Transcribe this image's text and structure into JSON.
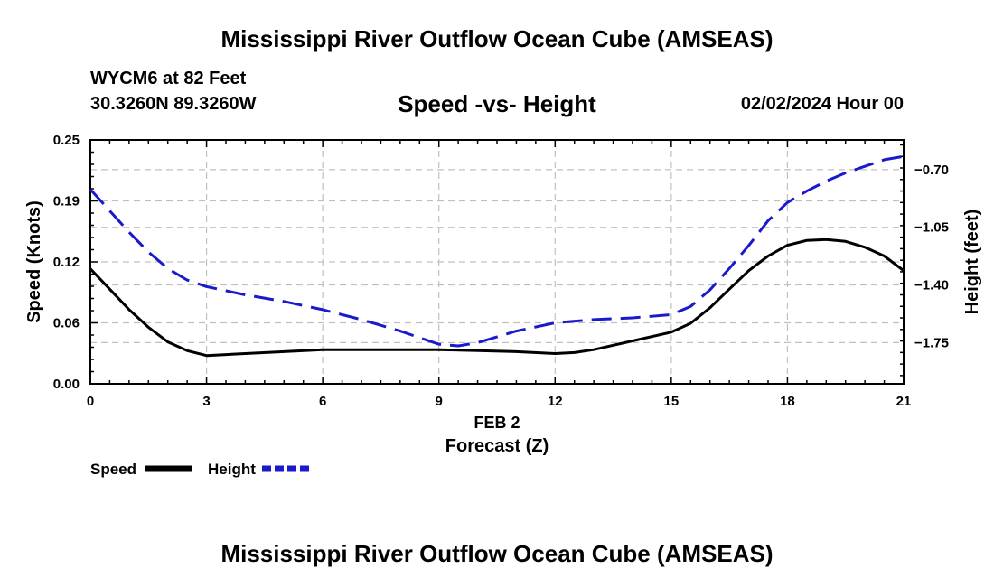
{
  "header": {
    "main_title": "Mississippi River Outflow Ocean Cube (AMSEAS)",
    "station": "WYCM6 at 82 Feet",
    "coords": "30.3260N  89.3260W",
    "subtitle": "Speed -vs- Height",
    "datetime": "02/02/2024 Hour 00"
  },
  "footer": {
    "bottom_title": "Mississippi River Outflow Ocean Cube (AMSEAS)"
  },
  "colors": {
    "speed": "#000000",
    "height": "#1a1acc",
    "grid": "#c0c0c0"
  },
  "chart_data": {
    "type": "line",
    "title": "Speed -vs- Height",
    "xlabel": "Forecast (Z)",
    "x_date_label": "FEB 2",
    "ylabel_left": "Speed (Knots)",
    "ylabel_right": "Height (feet)",
    "xlim": [
      0,
      21
    ],
    "ylim_left": [
      0,
      0.25
    ],
    "ylim_right": [
      -2.0,
      -0.52
    ],
    "x_ticks": [
      0,
      3,
      6,
      9,
      12,
      15,
      18,
      21
    ],
    "x_tick_labels": [
      "0",
      "3",
      "6",
      "9",
      "12",
      "15",
      "18",
      "21"
    ],
    "y_left_ticks": [
      0.0,
      0.0625,
      0.125,
      0.1875,
      0.25
    ],
    "y_left_tick_labels": [
      "0.00",
      "0.06",
      "0.12",
      "0.19",
      "0.25"
    ],
    "y_right_ticks": [
      -1.75,
      -1.4,
      -1.05,
      -0.7
    ],
    "y_right_tick_labels": [
      "−1.75",
      "−1.40",
      "−1.05",
      "−0.70"
    ],
    "grid": true,
    "legend": "bottom-left",
    "legend_entries": [
      "Speed",
      "Height"
    ],
    "series": [
      {
        "name": "Speed",
        "axis": "left",
        "style": "solid",
        "x": [
          0,
          0.5,
          1,
          1.5,
          2,
          2.5,
          3,
          4,
          5,
          6,
          7,
          8,
          9,
          10,
          11,
          12,
          12.5,
          13,
          14,
          15,
          15.5,
          16,
          16.5,
          17,
          17.5,
          18,
          18.5,
          19,
          19.5,
          20,
          20.5,
          21
        ],
        "values": [
          0.118,
          0.097,
          0.076,
          0.058,
          0.043,
          0.034,
          0.029,
          0.031,
          0.033,
          0.035,
          0.035,
          0.035,
          0.035,
          0.034,
          0.033,
          0.031,
          0.032,
          0.035,
          0.044,
          0.053,
          0.062,
          0.078,
          0.097,
          0.116,
          0.131,
          0.142,
          0.147,
          0.148,
          0.146,
          0.14,
          0.131,
          0.116
        ]
      },
      {
        "name": "Height",
        "axis": "right",
        "style": "dashed",
        "x": [
          0,
          0.5,
          1,
          1.5,
          2,
          2.5,
          3,
          4,
          5,
          6,
          7,
          8,
          9,
          9.5,
          10,
          11,
          12,
          13,
          14,
          15,
          15.5,
          16,
          16.5,
          17,
          17.5,
          18,
          18.5,
          19,
          19.5,
          20,
          20.5,
          21
        ],
        "values": [
          -0.82,
          -0.95,
          -1.08,
          -1.2,
          -1.3,
          -1.37,
          -1.41,
          -1.46,
          -1.5,
          -1.55,
          -1.61,
          -1.68,
          -1.76,
          -1.77,
          -1.75,
          -1.68,
          -1.63,
          -1.61,
          -1.6,
          -1.58,
          -1.53,
          -1.43,
          -1.3,
          -1.16,
          -1.01,
          -0.9,
          -0.83,
          -0.77,
          -0.72,
          -0.68,
          -0.64,
          -0.62
        ]
      }
    ]
  }
}
